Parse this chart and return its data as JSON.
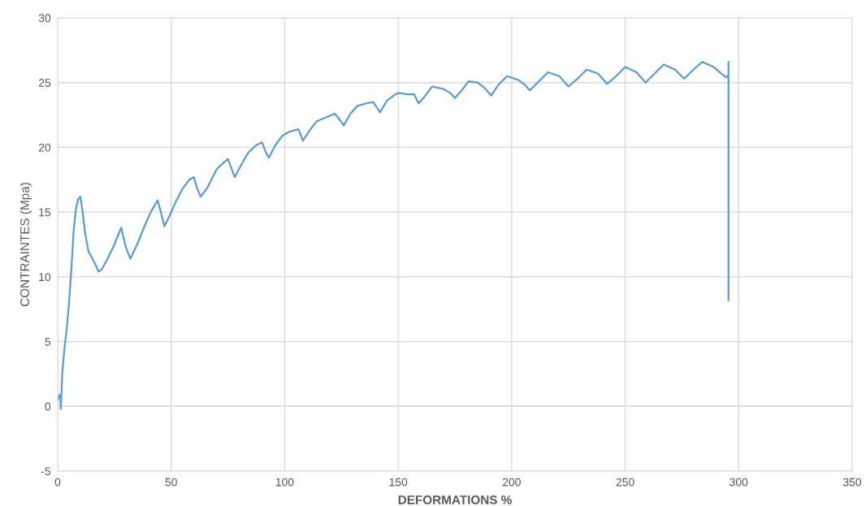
{
  "chart_data": {
    "type": "line",
    "xlabel": "DEFORMATIONS %",
    "ylabel": "CONTRAINTES (Mpa)",
    "xlim": [
      0,
      350
    ],
    "ylim": [
      -5,
      30
    ],
    "xticks": [
      0,
      50,
      100,
      150,
      200,
      250,
      300,
      350
    ],
    "yticks": [
      -5,
      0,
      5,
      10,
      15,
      20,
      25,
      30
    ],
    "grid": true,
    "legend": false,
    "marker": "none",
    "line_style": "solid",
    "series": [
      {
        "color": "#5b9bd5",
        "x": [
          0,
          0.6,
          1.1,
          1.4,
          2,
          3,
          4,
          5,
          6,
          7,
          8,
          9,
          10,
          11,
          12,
          13.5,
          15,
          16.5,
          18,
          19.5,
          22,
          25,
          28,
          30,
          32,
          35,
          38,
          41,
          44,
          45.5,
          47,
          49,
          52,
          55,
          58,
          60,
          61.5,
          63,
          66,
          70,
          73,
          75,
          76.5,
          78,
          81,
          84,
          87,
          90,
          91.5,
          93,
          96,
          99,
          102,
          106,
          107,
          108,
          111,
          114,
          118,
          122,
          124,
          126,
          129,
          132,
          136,
          139,
          140.5,
          142,
          145,
          148,
          150,
          154,
          157,
          159,
          162,
          165,
          170,
          173,
          175,
          178,
          181,
          185,
          188,
          191,
          194,
          198,
          203,
          206,
          208,
          212,
          216,
          221,
          225,
          229,
          233,
          238,
          242,
          246,
          250,
          255,
          259,
          263,
          267,
          272,
          276,
          280,
          284,
          289,
          293,
          294.5,
          295.5,
          295.5,
          295.5
        ],
        "values": [
          0.5,
          0.8,
          0.9,
          -0.2,
          2.5,
          4.5,
          6,
          8,
          10.5,
          13.5,
          15.2,
          16,
          16.2,
          15,
          13.5,
          12,
          11.5,
          11,
          10.4,
          10.6,
          11.4,
          12.5,
          13.8,
          12.3,
          11.4,
          12.5,
          13.8,
          15,
          15.9,
          15,
          13.9,
          14.6,
          15.8,
          16.8,
          17.5,
          17.7,
          16.8,
          16.2,
          16.9,
          18.3,
          18.8,
          19.1,
          18.4,
          17.7,
          18.7,
          19.6,
          20.1,
          20.4,
          19.7,
          19.2,
          20.2,
          20.9,
          21.2,
          21.4,
          21,
          20.5,
          21.3,
          22,
          22.3,
          22.6,
          22.2,
          21.7,
          22.6,
          23.2,
          23.4,
          23.5,
          23.1,
          22.7,
          23.6,
          24,
          24.2,
          24.1,
          24.1,
          23.4,
          24,
          24.7,
          24.5,
          24.2,
          23.8,
          24.4,
          25.1,
          25,
          24.6,
          24,
          24.8,
          25.5,
          25.2,
          24.8,
          24.4,
          25.1,
          25.8,
          25.5,
          24.7,
          25.3,
          26,
          25.7,
          24.9,
          25.5,
          26.2,
          25.8,
          25,
          25.7,
          26.4,
          26,
          25.3,
          26,
          26.6,
          26.2,
          25.6,
          25.4,
          25.6,
          26.6,
          8.2
        ]
      }
    ]
  }
}
